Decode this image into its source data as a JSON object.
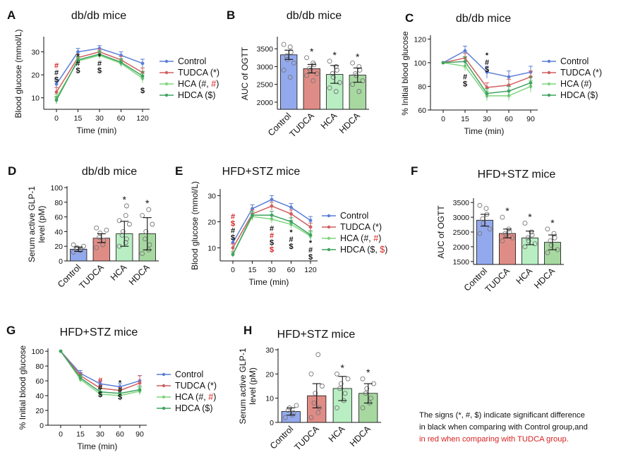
{
  "colors": {
    "control": "#5B7FD6",
    "tudca": "#D05F5F",
    "hca": "#7FD67F",
    "hdca": "#3FA35F",
    "bar_control": "#93A9EE",
    "bar_tudca": "#E08C86",
    "bar_hca": "#B8EEC2",
    "bar_hdca": "#A6D8A0",
    "red": "#D81F1F",
    "ink": "#111111"
  },
  "note": {
    "line1": "The signs (*, #, $) indicate significant difference",
    "line2": "in black when comparing with Control group,and",
    "line3": "in red when comparing with TUDCA group."
  },
  "chart_data": [
    {
      "panel": "A",
      "type": "line",
      "title": "db/db mice",
      "xlabel": "Time (min)",
      "ylabel": "Blood glucose (mmol/L)",
      "x": [
        0,
        15,
        30,
        60,
        120
      ],
      "xticks": [
        "0",
        "15",
        "30",
        "60",
        "120"
      ],
      "ylim": [
        5,
        36
      ],
      "yticks": [
        10,
        20,
        30
      ],
      "series": [
        {
          "name": "Control",
          "color_key": "control",
          "values": [
            16,
            30,
            31.5,
            28.5,
            25
          ],
          "errors": [
            2,
            1.5,
            1.2,
            1.5,
            1.8
          ]
        },
        {
          "name": "TUDCA (*)",
          "color_key": "tudca",
          "values": [
            12.5,
            27.5,
            30,
            26.5,
            21
          ],
          "errors": [
            2,
            1.5,
            1.3,
            1.5,
            2
          ]
        },
        {
          "name": "HCA (#, #)",
          "color_key": "hca",
          "values": [
            10,
            26,
            28.5,
            25,
            18.5
          ],
          "errors": [
            1.5,
            1.5,
            1.5,
            1.5,
            2
          ]
        },
        {
          "name": "HDCA ($)",
          "color_key": "hdca",
          "values": [
            9,
            26.5,
            29,
            25.5,
            19.5
          ],
          "errors": [
            1.5,
            1.5,
            1.5,
            1.5,
            2
          ]
        }
      ],
      "annotations": [
        {
          "x": 0,
          "y_data": 23,
          "lines": [
            {
              "t": "#",
              "c": "red"
            },
            {
              "t": "#",
              "c": "ink"
            },
            {
              "t": "$",
              "c": "ink"
            }
          ]
        },
        {
          "x": 15,
          "y_data": 27,
          "lines": [
            {
              "t": "*",
              "c": "ink"
            },
            {
              "t": "#",
              "c": "ink"
            },
            {
              "t": "$",
              "c": "ink"
            }
          ]
        },
        {
          "x": 30,
          "y_data": 27,
          "lines": [
            {
              "t": "*",
              "c": "ink"
            },
            {
              "t": "#",
              "c": "ink"
            },
            {
              "t": "$",
              "c": "ink"
            }
          ]
        },
        {
          "x": 120,
          "y_data": 12,
          "lines": [
            {
              "t": "$",
              "c": "ink"
            }
          ]
        }
      ],
      "legend": [
        {
          "parts": [
            {
              "t": "Control",
              "c": "ink"
            }
          ],
          "color_key": "control"
        },
        {
          "parts": [
            {
              "t": "TUDCA (*)",
              "c": "ink"
            }
          ],
          "color_key": "tudca"
        },
        {
          "parts": [
            {
              "t": "HCA (#, ",
              "c": "ink"
            },
            {
              "t": "#",
              "c": "red"
            },
            {
              "t": ")",
              "c": "ink"
            }
          ],
          "color_key": "hca"
        },
        {
          "parts": [
            {
              "t": "HDCA ($)",
              "c": "ink"
            }
          ],
          "color_key": "hdca"
        }
      ]
    },
    {
      "panel": "B",
      "type": "bar",
      "title": "db/db mice",
      "xlabel": "",
      "ylabel": "AUC of OGTT",
      "categories": [
        "Control",
        "TUDCA",
        "HCA",
        "HDCA"
      ],
      "values": [
        3330,
        2940,
        2780,
        2760
      ],
      "errors": [
        130,
        120,
        250,
        200
      ],
      "stars": [
        "",
        "*",
        "*",
        "*"
      ],
      "ylim": [
        1800,
        3800
      ],
      "yticks": [
        2000,
        2500,
        3000,
        3500
      ],
      "points": [
        [
          3620,
          3550,
          3400,
          3300,
          3200,
          3100,
          2900,
          2700
        ],
        [
          3250,
          3100,
          3050,
          2950,
          2900,
          2800,
          2750,
          2600
        ],
        [
          3150,
          3000,
          2900,
          2800,
          2700,
          2550,
          2400,
          2300
        ],
        [
          3100,
          3000,
          2900,
          2800,
          2750,
          2600,
          2500,
          2300
        ]
      ]
    },
    {
      "panel": "C",
      "type": "line",
      "title": "db/db mice",
      "xlabel": "Time (min)",
      "ylabel": "% Initial blood glucose",
      "x": [
        0,
        15,
        30,
        60,
        90
      ],
      "xticks": [
        "0",
        "15",
        "30",
        "60",
        "90"
      ],
      "ylim": [
        60,
        122
      ],
      "yticks": [
        60,
        80,
        100,
        120
      ],
      "series": [
        {
          "name": "Control",
          "color_key": "control",
          "values": [
            100,
            110,
            92,
            88,
            92
          ],
          "errors": [
            0,
            4,
            5,
            5,
            5
          ]
        },
        {
          "name": "TUDCA (*)",
          "color_key": "tudca",
          "values": [
            100,
            104,
            79,
            81,
            88
          ],
          "errors": [
            0,
            4,
            4,
            5,
            5
          ]
        },
        {
          "name": "HCA (#)",
          "color_key": "hca",
          "values": [
            100,
            97,
            72,
            72,
            80
          ],
          "errors": [
            0,
            4,
            4,
            4,
            5
          ]
        },
        {
          "name": "HDCA ($)",
          "color_key": "hdca",
          "values": [
            100,
            101,
            74,
            76,
            83
          ],
          "errors": [
            0,
            4,
            4,
            4,
            5
          ]
        }
      ],
      "annotations": [
        {
          "x": 15,
          "y_data": 86,
          "lines": [
            {
              "t": "#",
              "c": "ink"
            },
            {
              "t": "$",
              "c": "ink"
            }
          ]
        },
        {
          "x": 30,
          "y_data": 104,
          "lines": [
            {
              "t": "*",
              "c": "ink"
            },
            {
              "t": "#",
              "c": "ink"
            },
            {
              "t": "$",
              "c": "ink"
            }
          ]
        }
      ],
      "legend": [
        {
          "parts": [
            {
              "t": "Control",
              "c": "ink"
            }
          ],
          "color_key": "control"
        },
        {
          "parts": [
            {
              "t": "TUDCA (*)",
              "c": "ink"
            }
          ],
          "color_key": "tudca"
        },
        {
          "parts": [
            {
              "t": "HCA (#)",
              "c": "ink"
            }
          ],
          "color_key": "hca"
        },
        {
          "parts": [
            {
              "t": "HDCA ($)",
              "c": "ink"
            }
          ],
          "color_key": "hdca"
        }
      ]
    },
    {
      "panel": "D",
      "type": "bar",
      "title": "db/db mice",
      "xlabel": "",
      "ylabel": "Serum active GLP-1 level (pM)",
      "categories": [
        "Control",
        "TUDCA",
        "HCA",
        "HDCA"
      ],
      "values": [
        16,
        31,
        37,
        37
      ],
      "errors": [
        3,
        6,
        17,
        22
      ],
      "stars": [
        "",
        "",
        "*",
        "*"
      ],
      "ylim": [
        0,
        100
      ],
      "yticks": [
        0,
        20,
        40,
        60,
        80,
        100
      ],
      "points": [
        [
          12,
          14,
          15,
          17,
          18,
          20,
          22
        ],
        [
          18,
          22,
          28,
          32,
          38,
          42,
          45
        ],
        [
          20,
          25,
          30,
          35,
          40,
          50,
          55,
          62,
          75
        ],
        [
          10,
          15,
          22,
          30,
          40,
          50,
          62,
          70
        ]
      ]
    },
    {
      "panel": "E",
      "type": "line",
      "title": "HFD+STZ mice",
      "xlabel": "Time (min)",
      "ylabel": "Blood glucose (mmol/L)",
      "x": [
        0,
        15,
        30,
        60,
        120
      ],
      "xticks": [
        "0",
        "15",
        "30",
        "60",
        "120"
      ],
      "ylim": [
        5,
        32
      ],
      "yticks": [
        10,
        20,
        30
      ],
      "series": [
        {
          "name": "Control",
          "color_key": "control",
          "values": [
            12,
            25,
            28.5,
            25.5,
            20.5
          ],
          "errors": [
            1.5,
            1.5,
            1.5,
            1.5,
            1.5
          ]
        },
        {
          "name": "TUDCA (*)",
          "color_key": "tudca",
          "values": [
            10,
            23,
            26,
            23,
            18
          ],
          "errors": [
            1.5,
            1.5,
            1.5,
            1.5,
            1.5
          ]
        },
        {
          "name": "HCA (#, #)",
          "color_key": "hca",
          "values": [
            7.5,
            22,
            21,
            19,
            14.5
          ],
          "errors": [
            1,
            1.5,
            1.5,
            1.5,
            1.5
          ]
        },
        {
          "name": "HDCA ($, $)",
          "color_key": "hdca",
          "values": [
            7.5,
            22.5,
            22.5,
            20,
            15
          ],
          "errors": [
            1,
            1.5,
            1.5,
            1.5,
            1.5
          ]
        }
      ],
      "annotations": [
        {
          "x": 0,
          "y_data": 21,
          "lines": [
            {
              "t": "#",
              "c": "red"
            },
            {
              "t": "$",
              "c": "red"
            },
            {
              "t": "#",
              "c": "ink"
            },
            {
              "t": "$",
              "c": "ink"
            }
          ]
        },
        {
          "x": 30,
          "y_data": 16.5,
          "lines": [
            {
              "t": "#",
              "c": "ink"
            },
            {
              "t": "#",
              "c": "red"
            },
            {
              "t": "$",
              "c": "ink"
            },
            {
              "t": "$",
              "c": "red"
            }
          ]
        },
        {
          "x": 60,
          "y_data": 15,
          "lines": [
            {
              "t": "*",
              "c": "ink"
            },
            {
              "t": "#",
              "c": "ink"
            },
            {
              "t": "$",
              "c": "ink"
            }
          ]
        },
        {
          "x": 120,
          "y_data": 11,
          "lines": [
            {
              "t": "*",
              "c": "ink"
            },
            {
              "t": "#",
              "c": "ink"
            },
            {
              "t": "$",
              "c": "ink"
            }
          ]
        }
      ],
      "legend": [
        {
          "parts": [
            {
              "t": "Control",
              "c": "ink"
            }
          ],
          "color_key": "control"
        },
        {
          "parts": [
            {
              "t": "TUDCA (*)",
              "c": "ink"
            }
          ],
          "color_key": "tudca"
        },
        {
          "parts": [
            {
              "t": "HCA (#, ",
              "c": "ink"
            },
            {
              "t": "#",
              "c": "red"
            },
            {
              "t": ")",
              "c": "ink"
            }
          ],
          "color_key": "hca"
        },
        {
          "parts": [
            {
              "t": "HDCA ($, ",
              "c": "ink"
            },
            {
              "t": "$",
              "c": "red"
            },
            {
              "t": ")",
              "c": "ink"
            }
          ],
          "color_key": "hdca"
        }
      ]
    },
    {
      "panel": "F",
      "type": "bar",
      "title": "HFD+STZ mice",
      "xlabel": "",
      "ylabel": "AUC of OGTT",
      "categories": [
        "Control",
        "TUDCA",
        "HCA",
        "HDCA"
      ],
      "values": [
        2900,
        2450,
        2300,
        2150
      ],
      "errors": [
        200,
        150,
        230,
        250
      ],
      "stars": [
        "",
        "*",
        "*",
        "*"
      ],
      "ylim": [
        1400,
        3600
      ],
      "yticks": [
        1500,
        2000,
        2500,
        3000,
        3500
      ],
      "points": [
        [
          3400,
          3300,
          3100,
          2950,
          2800,
          2600,
          2450
        ],
        [
          3000,
          2600,
          2500,
          2450,
          2400,
          2300,
          2200
        ],
        [
          2800,
          2500,
          2400,
          2300,
          2200,
          2100,
          2000
        ],
        [
          2600,
          2450,
          2300,
          2200,
          2050,
          1900,
          1800
        ]
      ]
    },
    {
      "panel": "G",
      "type": "line",
      "title": "HFD+STZ mice",
      "xlabel": "Time (min)",
      "ylabel": "% Initial blood glucose",
      "x": [
        0,
        15,
        30,
        60,
        90
      ],
      "xticks": [
        "0",
        "15",
        "30",
        "60",
        "90"
      ],
      "ylim": [
        0,
        102
      ],
      "yticks": [
        0,
        20,
        40,
        60,
        80,
        100
      ],
      "series": [
        {
          "name": "Control",
          "color_key": "control",
          "values": [
            100,
            70,
            56,
            52,
            60
          ],
          "errors": [
            0,
            4,
            4,
            4,
            7
          ]
        },
        {
          "name": "TUDCA (*)",
          "color_key": "tudca",
          "values": [
            100,
            67,
            50,
            47,
            57
          ],
          "errors": [
            0,
            4,
            4,
            4,
            10
          ]
        },
        {
          "name": "HCA (#, #)",
          "color_key": "hca",
          "values": [
            100,
            62,
            42,
            40,
            46
          ],
          "errors": [
            0,
            4,
            4,
            4,
            5
          ]
        },
        {
          "name": "HDCA ($)",
          "color_key": "hdca",
          "values": [
            100,
            64,
            45,
            43,
            48
          ],
          "errors": [
            0,
            4,
            4,
            4,
            5
          ]
        }
      ],
      "annotations": [
        {
          "x": 30,
          "y_data": 57,
          "lines": [
            {
              "t": "#",
              "c": "red"
            },
            {
              "t": "#",
              "c": "ink"
            },
            {
              "t": "$",
              "c": "ink"
            }
          ]
        },
        {
          "x": 60,
          "y_data": 54,
          "lines": [
            {
              "t": "*",
              "c": "ink"
            },
            {
              "t": "#",
              "c": "ink"
            },
            {
              "t": "$",
              "c": "ink"
            }
          ]
        }
      ],
      "legend": [
        {
          "parts": [
            {
              "t": "Control",
              "c": "ink"
            }
          ],
          "color_key": "control"
        },
        {
          "parts": [
            {
              "t": "TUDCA (*)",
              "c": "ink"
            }
          ],
          "color_key": "tudca"
        },
        {
          "parts": [
            {
              "t": "HCA (#, ",
              "c": "ink"
            },
            {
              "t": "#",
              "c": "red"
            },
            {
              "t": ")",
              "c": "ink"
            }
          ],
          "color_key": "hca"
        },
        {
          "parts": [
            {
              "t": "HDCA ($)",
              "c": "ink"
            }
          ],
          "color_key": "hdca"
        }
      ]
    },
    {
      "panel": "H",
      "type": "bar",
      "title": "HFD+STZ mice",
      "xlabel": "",
      "ylabel": "Serum active GLP-1 level (pM)",
      "categories": [
        "Control",
        "TUDCA",
        "HCA",
        "HDCA"
      ],
      "values": [
        4.5,
        11,
        14,
        12
      ],
      "errors": [
        1.5,
        5,
        5,
        4
      ],
      "stars": [
        "",
        "",
        "*",
        "*"
      ],
      "ylim": [
        0,
        30
      ],
      "yticks": [
        0,
        10,
        20,
        30
      ],
      "points": [
        [
          2,
          3,
          4,
          5,
          6,
          7
        ],
        [
          2,
          4,
          6,
          8,
          12,
          15,
          20,
          28
        ],
        [
          6,
          9,
          12,
          14,
          16,
          18,
          20
        ],
        [
          6,
          8,
          10,
          12,
          14,
          16,
          18
        ]
      ]
    }
  ]
}
